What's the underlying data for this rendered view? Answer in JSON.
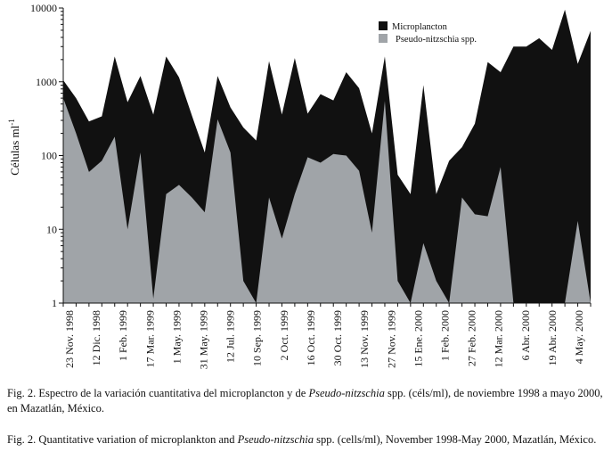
{
  "captions": {
    "es": {
      "prefix": "Fig. 2. Espectro de la variación cuantitativa del microplancton y de ",
      "genus": "Pseudo-nitzschia",
      "suffix": " spp. (céls/ml), de noviembre 1998 a mayo 2000, en Mazatlán, México."
    },
    "en": {
      "prefix": "Fig. 2. Quantitative variation of microplankton and ",
      "genus": "Pseudo-nitzschia",
      "suffix": " spp. (cells/ml), November 1998-May 2000, Mazatlán, México."
    }
  },
  "chart_data": {
    "type": "area",
    "ylabel": "Células ml",
    "ylabel_superscript": "-1",
    "yscale": "log",
    "ylim": [
      1,
      10000
    ],
    "yticks": [
      "1",
      "10",
      "100",
      "1000",
      "10000"
    ],
    "xtick_labels": [
      "23 Nov. 1998",
      "12 Dic. 1998",
      "1 Feb. 1999",
      "17 Mar. 1999",
      "1 May. 1999",
      "31 May. 1999",
      "12 Jul. 1999",
      "10 Sep. 1999",
      "2 Oct. 1999",
      "16 Oct. 1999",
      "30 Oct. 1999",
      "13 Nov. 1999",
      "27 Nov. 1999",
      "15 Ene. 2000",
      "1 Feb. 2000",
      "27 Feb. 2000",
      "12 Mar. 2000",
      "6 Abr. 2000",
      "19 Abr. 2000",
      "4 May. 2000"
    ],
    "grid": false,
    "legend_position": "top-right",
    "colors": {
      "Microplancton": "#111111",
      "Pseudo-nitzschia spp.": "#a0a4a8"
    },
    "series": [
      {
        "name": "Microplancton",
        "values": [
          1050,
          600,
          290,
          340,
          2200,
          530,
          1200,
          360,
          2200,
          1150,
          350,
          110,
          1200,
          450,
          240,
          160,
          1900,
          360,
          2100,
          370,
          680,
          560,
          1350,
          820,
          200,
          2200,
          55,
          30,
          900,
          30,
          85,
          130,
          270,
          1850,
          1350,
          3000,
          3000,
          3900,
          2700,
          9500,
          1750,
          4900
        ]
      },
      {
        "name": "Pseudo-nitzschia spp.",
        "values": [
          600,
          200,
          60,
          85,
          180,
          10,
          110,
          1.15,
          30,
          40,
          27,
          17,
          310,
          110,
          2,
          1,
          27,
          7.5,
          30,
          95,
          80,
          105,
          100,
          62,
          9,
          550,
          2,
          1,
          6.5,
          2,
          1,
          27,
          16,
          15,
          70,
          1,
          1,
          1,
          1,
          1,
          13,
          1
        ]
      }
    ]
  }
}
